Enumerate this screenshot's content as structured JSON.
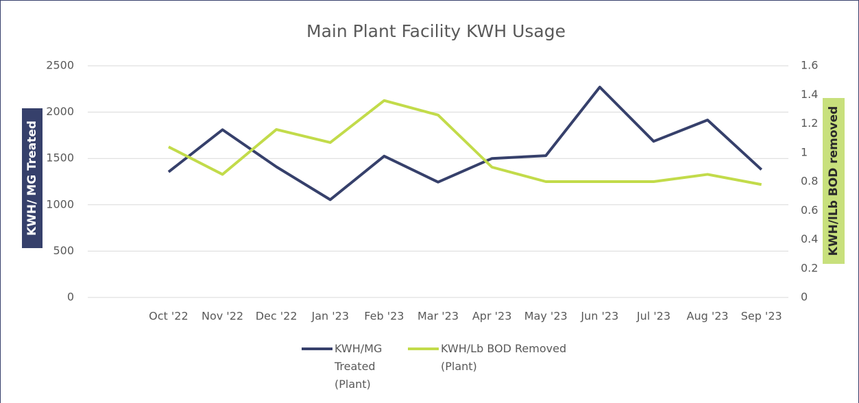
{
  "chart_data": {
    "type": "line",
    "title": "Main Plant Facility KWH Usage",
    "y_label": "KWH/ MG Treated",
    "y2_label": "KWH/lLb BOD removed",
    "categories": [
      null,
      "Oct '22",
      "Nov '22",
      "Dec '22",
      "Jan '23",
      "Feb '23",
      "Mar '23",
      "Apr '23",
      "May '23",
      "Jun '23",
      "Jul '23",
      "Aug '23",
      "Sep '23"
    ],
    "series": [
      {
        "name": "KWH/MG Treated (Plant)",
        "color": "#36406b",
        "values": [
          null,
          1355,
          1810,
          1410,
          1055,
          1525,
          1245,
          1500,
          1530,
          2270,
          1685,
          1915,
          1380
        ]
      },
      {
        "name": "KWH/Lb BOD Removed (Plant)",
        "color": "#c2db4a",
        "axis": "y2",
        "values": [
          null,
          1.04,
          0.85,
          1.16,
          1.07,
          1.36,
          1.26,
          0.9,
          0.8,
          0.8,
          0.8,
          0.85,
          0.78
        ]
      }
    ],
    "ylim": [
      0,
      2500
    ],
    "yticks": [
      0,
      500,
      1000,
      1500,
      2000,
      2500
    ],
    "y2lim": [
      0,
      1.6
    ],
    "y2ticks": [
      0,
      0.2,
      0.4,
      0.6,
      0.8,
      1,
      1.2,
      1.4,
      1.6
    ],
    "grid": true,
    "legend": "bottom"
  }
}
